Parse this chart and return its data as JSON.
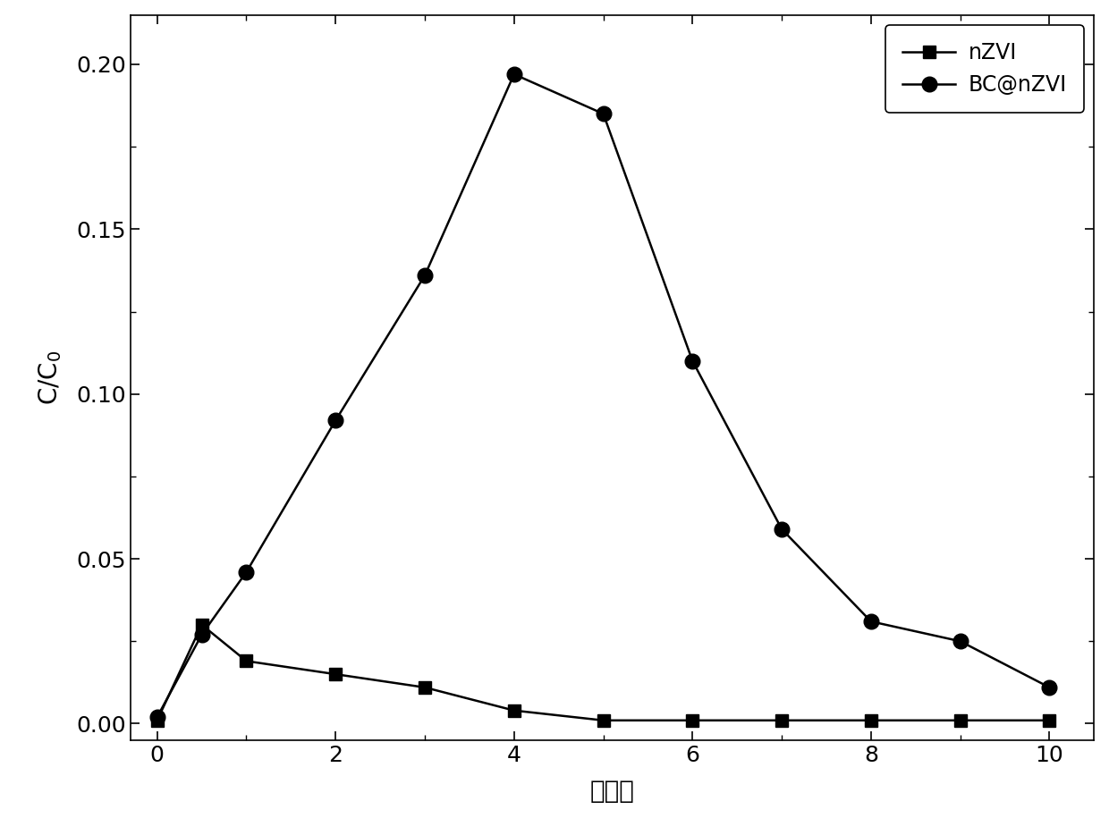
{
  "nZVI_x": [
    0,
    0.5,
    1,
    2,
    3,
    4,
    5,
    6,
    7,
    8,
    9,
    10
  ],
  "nZVI_y": [
    0.001,
    0.03,
    0.019,
    0.015,
    0.011,
    0.004,
    0.001,
    0.001,
    0.001,
    0.001,
    0.001,
    0.001
  ],
  "BCnZVI_x": [
    0,
    0.5,
    1,
    2,
    3,
    4,
    5,
    6,
    7,
    8,
    9,
    10
  ],
  "BCnZVI_y": [
    0.002,
    0.027,
    0.046,
    0.092,
    0.136,
    0.197,
    0.185,
    0.11,
    0.059,
    0.031,
    0.025,
    0.011
  ],
  "xlabel": "孔体积",
  "ylabel": "C/C$_0$",
  "ylim": [
    -0.005,
    0.215
  ],
  "xlim": [
    -0.3,
    10.5
  ],
  "yticks": [
    0.0,
    0.05,
    0.1,
    0.15,
    0.2
  ],
  "xticks": [
    0,
    2,
    4,
    6,
    8,
    10
  ],
  "legend_nZVI": "nZVI",
  "legend_BCnZVI": "BC@nZVI",
  "line_color": "#000000",
  "marker_color": "#000000",
  "background_color": "#ffffff",
  "label_fontsize": 20,
  "tick_fontsize": 18,
  "legend_fontsize": 17,
  "line_width": 1.8,
  "marker_size_square": 10,
  "marker_size_circle": 12
}
